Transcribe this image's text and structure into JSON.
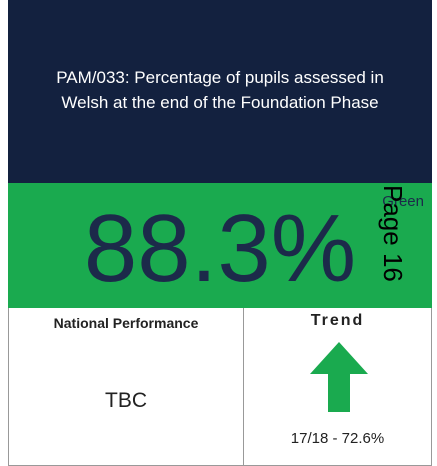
{
  "tile": {
    "title_lines": [
      "PAM/033: Percentage of pupils assessed in",
      "Welsh at the end of the Foundation Phase"
    ],
    "status": "Green",
    "value": "88.3%",
    "national_label": "National Performance",
    "national_value": "TBC",
    "trend_label": "Trend",
    "trend_text": "17/18 - 72.6%"
  },
  "page_label": "Page 16"
}
